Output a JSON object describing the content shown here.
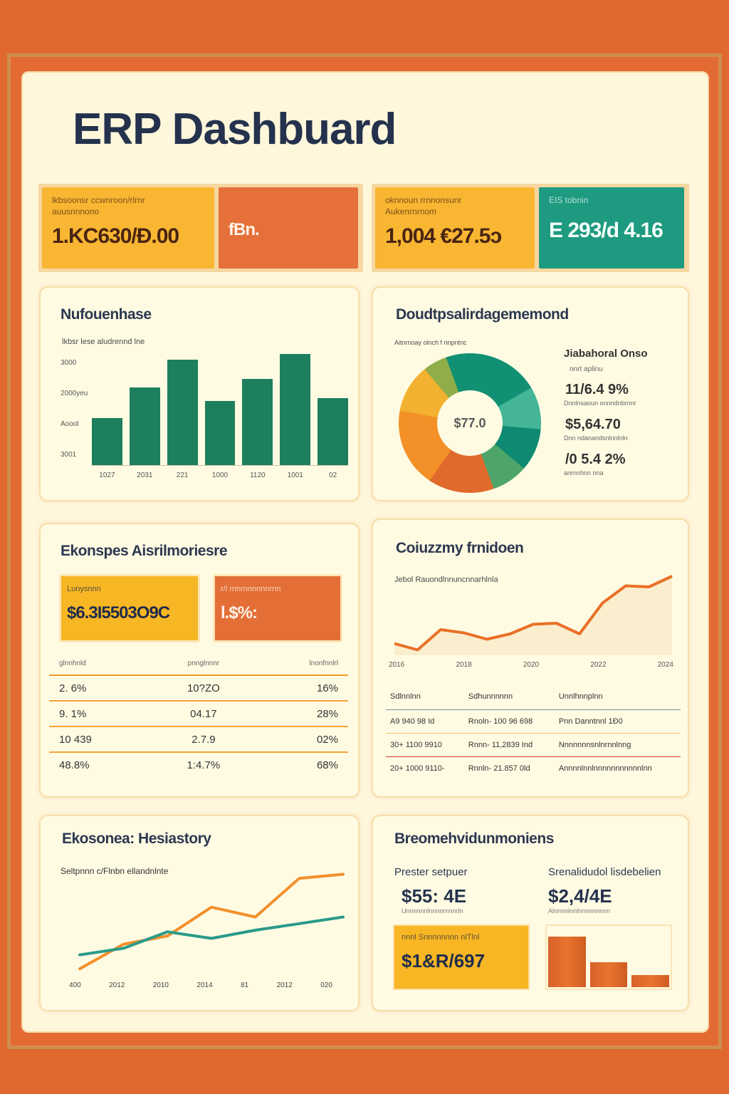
{
  "header": {
    "title": "ERP Dashbuard"
  },
  "kpis": [
    {
      "label_line1": "lkbsoonsr ccwnroon/rlrnr",
      "label_line2": "auusnnnono",
      "value": "1.KC630/Ð.00",
      "color": "#f8b632"
    },
    {
      "label_line1": "",
      "label_line2": "",
      "value": "fBn.",
      "color": "#e5703a"
    },
    {
      "label_line1": "oknnoun rrnnonsunr",
      "label_line2": "Aukenrnrnom",
      "value": "1,004 €27.5ɔ",
      "color": "#f8b632"
    },
    {
      "label_line1": "EIS tobnin",
      "label_line2": "",
      "value": "E 293/d 4.16",
      "color": "#1e9a80"
    }
  ],
  "cards": {
    "bar_card": {
      "title": "Nufouenhase",
      "subtitle": "lkbsr lese aludrennd lne",
      "y_ticks": [
        "3000",
        "2000yeu",
        "Aoool",
        "3001"
      ],
      "x_ticks": [
        "1027",
        "2031",
        "221",
        "1000",
        "1120",
        "1001",
        "02"
      ]
    },
    "donut_card": {
      "title": "Doudtpsalirdagememond",
      "subtitle": "Aitnrnoay olnch f rinpntnc",
      "center_label": "$77.0",
      "legend_title": "Jiabahoral  Onso",
      "legend_sub": "nnrt aplinu",
      "legend_items": [
        {
          "value": "11/6.4 9%",
          "caption": "Dnnlnsaoun onnndnbrnnr"
        },
        {
          "value": "$5,64.70",
          "caption": "Dnn ndanandsnlnnlnln"
        },
        {
          "value": "/0 5.4 2%",
          "caption": "anrnnhnn nna"
        }
      ]
    },
    "expense_card": {
      "title": "Ekonspes Aisrilmoriesre",
      "mini_kpis": [
        {
          "label": "Lunysnnn",
          "value": "$6.3I5503O9C"
        },
        {
          "label": "r/l  rnnrnnnnnnrnn",
          "value": "l.$%:"
        }
      ],
      "table": {
        "headers": [
          "glnnhnld",
          "pnnglnnnr",
          "lnonfnnlrl"
        ],
        "rows": [
          [
            "2. 6%",
            "10?ZO",
            "16%"
          ],
          [
            "9. 1%",
            "04.17",
            "28%"
          ],
          [
            "10 439",
            "2.7.9",
            "02%"
          ],
          [
            "48.8%",
            "1:4.7%",
            "68%"
          ]
        ]
      }
    },
    "line_card": {
      "title": "Coiuzzmy frnidoen",
      "subtitle": "Jebol  Rauondlnnuncnnarhlnla",
      "x_ticks": [
        "2016",
        "2018",
        "2020",
        "2022",
        "2024"
      ],
      "table": {
        "headers": [
          "Sdlnnlnn",
          "Sdhunnnnnn",
          "Unnlhnnplnn"
        ],
        "rows": [
          {
            "cells": [
              "A9   940 98 Id",
              "Rnoln- 100 96 698",
              "Pnn Danntnnl        1Ð0"
            ],
            "alert": false
          },
          {
            "cells": [
              "30+ 1100 9910",
              "Rnnn- 11,2839 Ind",
              "Nnnnnnnsnlnrnnlnng"
            ],
            "alert": true
          },
          {
            "cells": [
              "20+ 1000 9110-",
              "Rnnln- 21.857 0ld",
              "Annnnlnnlnnnnnnnnnnnlnn"
            ],
            "alert": false
          }
        ]
      }
    },
    "history_card": {
      "title": "Ekosonea: Hesiastory",
      "subtitle": "Seltpnnn c/Flnbn ellandnlnte",
      "x_ticks": [
        "400",
        "2012",
        "2010",
        "2014",
        "81",
        "2012",
        "020"
      ]
    },
    "finance_card": {
      "title": "Breomehvidunmoniens",
      "col1": {
        "label": "Prester setpuer",
        "value": "$55: 4E",
        "caption": "Unnnnnnlnnnnrnnnrln"
      },
      "col2": {
        "label": "Srenalidudol lisdebelien",
        "value": "$2,4/4E",
        "caption": "Alnnnnlnnlnnnnnnnnn"
      },
      "box": {
        "label": "nnnl Snnnnnnnn nlTlnl",
        "value": "$1&R/697"
      }
    }
  },
  "chart_data": [
    {
      "type": "bar",
      "title": "Nufouenhase",
      "categories": [
        "1027",
        "2031",
        "221",
        "1000",
        "1120",
        "1001",
        "02"
      ],
      "values": [
        1700,
        2800,
        3800,
        2300,
        3100,
        4000,
        2400
      ],
      "ylim": [
        0,
        4200
      ],
      "color": "#1d7f5e"
    },
    {
      "type": "pie",
      "title": "Doudtpsalirdagememond",
      "categories": [
        "Teal",
        "Light teal",
        "Green",
        "Red-orange",
        "Orange",
        "Yellow"
      ],
      "values": [
        26,
        13,
        8,
        15,
        18,
        20
      ],
      "center_label": "$77.0"
    },
    {
      "type": "area",
      "title": "Coiuzzmy frnidoen",
      "x": [
        0,
        1,
        2,
        3,
        4,
        5,
        6,
        7,
        8,
        9,
        10,
        11,
        12
      ],
      "values": [
        22,
        10,
        48,
        42,
        30,
        40,
        58,
        60,
        40,
        98,
        130,
        128,
        148
      ],
      "color": "#ea7028"
    },
    {
      "type": "line",
      "title": "Ekosonea: Hesiastory",
      "categories": [
        "400",
        "2012",
        "2010",
        "2014",
        "81",
        "2012",
        "020"
      ],
      "series": [
        {
          "name": "orange",
          "color": "#f2902c",
          "values": [
            5,
            35,
            45,
            80,
            68,
            115,
            120
          ]
        },
        {
          "name": "teal",
          "color": "#2a9a8a",
          "values": [
            22,
            30,
            50,
            42,
            52,
            60,
            68
          ]
        }
      ]
    },
    {
      "type": "bar",
      "title": "Breomehvidunmoniens",
      "categories": [
        "A",
        "B",
        "C"
      ],
      "values": [
        85,
        42,
        20
      ],
      "color": "#e0682b"
    }
  ]
}
